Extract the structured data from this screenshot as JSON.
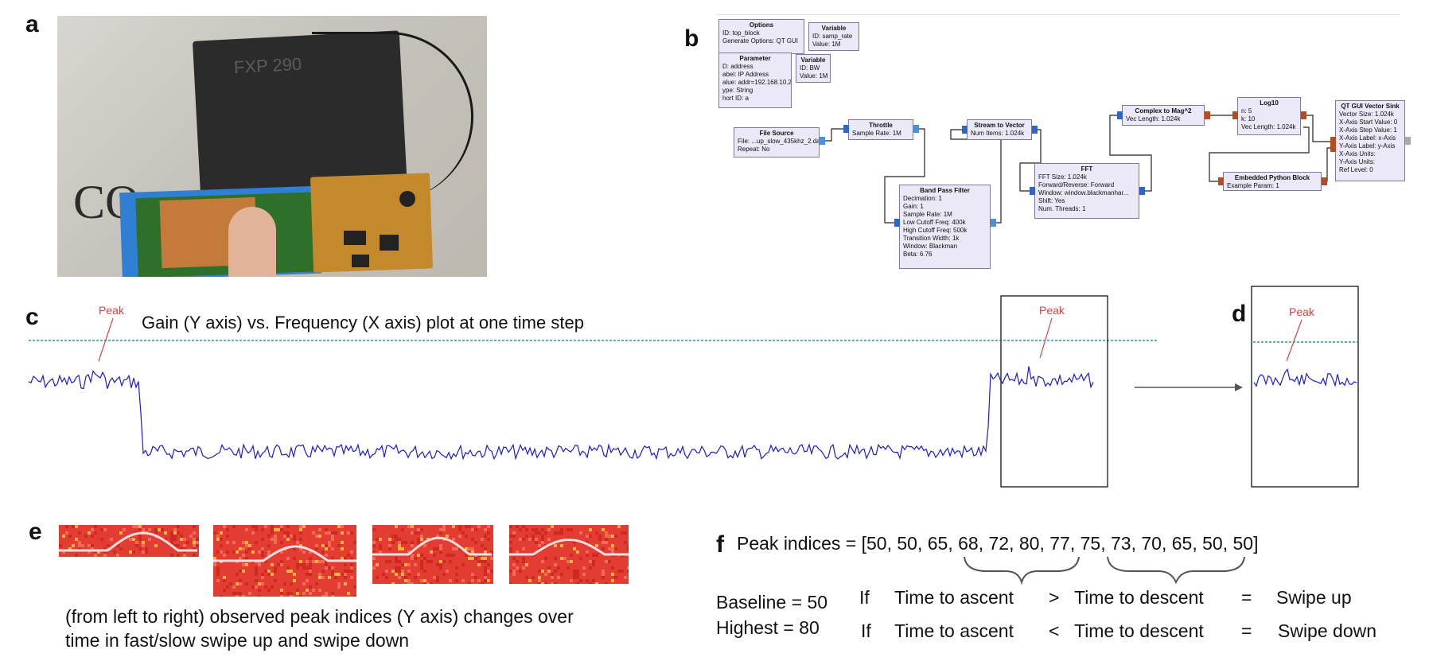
{
  "panels": {
    "a": "a",
    "b": "b",
    "c": "c",
    "d": "d",
    "e": "e",
    "f": "f"
  },
  "photo": {
    "pad_label": "FXP 290",
    "big_text": "CO"
  },
  "flowgraph": {
    "options": {
      "title": "Options",
      "params": [
        "ID: top_block",
        "Generate Options: QT GUI"
      ]
    },
    "variable1": {
      "title": "Variable",
      "params": [
        "ID: samp_rate",
        "Value: 1M"
      ]
    },
    "parameter": {
      "title": "Parameter",
      "params": [
        "D: address",
        "abel: IP Address",
        "alue: addr=192.168.10.2",
        "ype: String",
        "hort ID: a"
      ]
    },
    "variable2": {
      "title": "Variable",
      "params": [
        "ID: BW",
        "Value: 1M"
      ]
    },
    "file_source": {
      "title": "File Source",
      "params": [
        "File: ...up_slow_435khz_2.dat",
        "Repeat: No"
      ]
    },
    "throttle": {
      "title": "Throttle",
      "params": [
        "Sample Rate: 1M"
      ]
    },
    "bpf": {
      "title": "Band Pass Filter",
      "params": [
        "Decimation: 1",
        "Gain: 1",
        "Sample Rate: 1M",
        "Low Cutoff Freq: 400k",
        "High Cutoff Freq: 500k",
        "Transition Width: 1k",
        "Window: Blackman",
        "Beta: 6.76"
      ]
    },
    "stream_to_vector": {
      "title": "Stream to Vector",
      "params": [
        "Num Items: 1.024k"
      ]
    },
    "fft": {
      "title": "FFT",
      "params": [
        "FFT Size: 1.024k",
        "Forward/Reverse: Forward",
        "Window: window.blackmanhar...",
        "Shift: Yes",
        "Num. Threads: 1"
      ]
    },
    "complex_mag": {
      "title": "Complex to Mag^2",
      "params": [
        "Vec Length: 1.024k"
      ]
    },
    "log10": {
      "title": "Log10",
      "params": [
        "n: 5",
        "k: 10",
        "Vec Length: 1.024k"
      ]
    },
    "embedded": {
      "title": "Embedded Python Block",
      "params": [
        "Example Param: 1"
      ]
    },
    "vector_sink": {
      "title": "QT GUI Vector Sink",
      "params": [
        "Vector Size: 1.024k",
        "X-Axis Start Value: 0",
        "X-Axis Step Value: 1",
        "X-Axis Label: x-Axis",
        "Y-Axis Label: y-Axis",
        "X-Axis Units:",
        "Y-Axis Units:",
        "Ref Level: 0"
      ]
    }
  },
  "panel_c": {
    "title": "Gain (Y axis) vs. Frequency (X axis) plot at one time step",
    "peak_label_left": "Peak",
    "peak_label_box": "Peak",
    "line_color": "#1a1adb",
    "threshold_color": "#2a9aa0"
  },
  "panel_d": {
    "peak_label": "Peak"
  },
  "panel_e": {
    "caption_line1": "(from left to right) observed peak indices (Y axis) changes over",
    "caption_line2": "time in fast/slow swipe up and swipe down"
  },
  "panel_f": {
    "peak_prefix": "Peak indices = [",
    "peak_values": [
      "50",
      "50",
      "65",
      "68",
      "72",
      "80",
      "77",
      "75",
      "73",
      "70",
      "65",
      "50",
      "50"
    ],
    "peak_suffix": "]",
    "baseline": "Baseline = 50",
    "highest": "Highest = 80",
    "rule1": {
      "if": "If",
      "a": "Time to ascent",
      "op": ">",
      "b": "Time to descent",
      "eq": "=",
      "result": "Swipe up"
    },
    "rule2": {
      "if": "If",
      "a": "Time to ascent",
      "op": "<",
      "b": "Time to descent",
      "eq": "=",
      "result": "Swipe down"
    }
  }
}
